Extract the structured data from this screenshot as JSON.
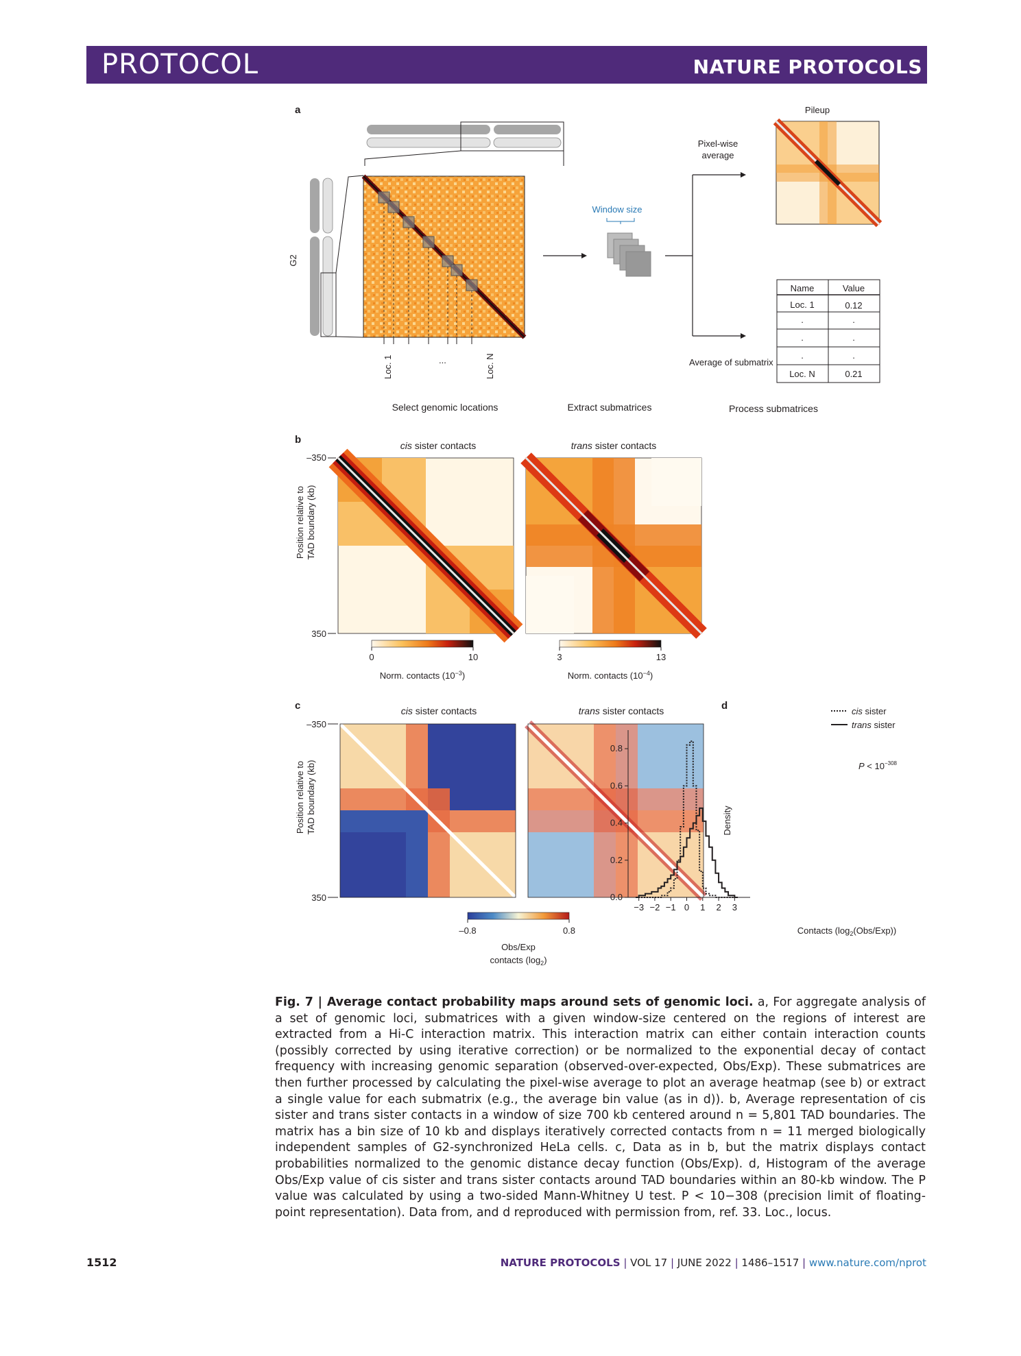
{
  "header": {
    "section": "PROTOCOL",
    "journal": "NATURE PROTOCOLS"
  },
  "panel_a": {
    "letter": "a",
    "g2_label": "G2",
    "loc1": "Loc. 1",
    "dots": "...",
    "locN": "Loc. N",
    "window_size": "Window size",
    "pixelwise_l1": "Pixel-wise",
    "pixelwise_l2": "average",
    "pileup": "Pileup",
    "average_sub": "Average of submatrix",
    "step1": "Select genomic locations",
    "step2": "Extract submatrices",
    "step3": "Process submatrices",
    "table": {
      "headers": [
        "Name",
        "Value"
      ],
      "rows": [
        [
          "Loc. 1",
          "0.12"
        ],
        [
          ".",
          "."
        ],
        [
          ".",
          "."
        ],
        [
          ".",
          "."
        ],
        [
          "Loc. N",
          "0.21"
        ]
      ]
    }
  },
  "panel_b": {
    "letter": "b",
    "cis_title_i": "cis",
    "trans_title_i": "trans",
    "title_rest": " sister contacts",
    "ylabel_l1": "Position relative to",
    "ylabel_l2": "TAD boundary (kb)",
    "y_top": "–350",
    "y_bottom": "350",
    "cbar1_min": "0",
    "cbar1_max": "10",
    "cbar1_label": "Norm. contacts (10",
    "cbar1_exp": "−3",
    "cbar1_close": ")",
    "cbar2_min": "3",
    "cbar2_max": "13",
    "cbar2_label": "Norm. contacts (10",
    "cbar2_exp": "−4",
    "cbar2_close": ")"
  },
  "panel_c": {
    "letter": "c",
    "y_top": "–350",
    "y_bottom": "350",
    "cbar_min": "–0.8",
    "cbar_max": "0.8",
    "cbar_label_l1": "Obs/Exp",
    "cbar_label_l2": "contacts (log",
    "cbar_label_sub": "2",
    "cbar_label_close": ")"
  },
  "chart_data": {
    "type": "line",
    "panel": "d",
    "xlabel": "Contacts (log2(Obs/Exp))",
    "ylabel": "Density",
    "xlim": [
      -3.2,
      3.2
    ],
    "ylim": [
      0,
      0.9
    ],
    "xticks": [
      -3,
      -2,
      -1,
      0,
      1,
      2,
      3
    ],
    "yticks": [
      0.0,
      0.2,
      0.4,
      0.6,
      0.8
    ],
    "annotation": "P < 10^−308",
    "bin_width": 0.2,
    "bin_edges_start": -3.2,
    "series": [
      {
        "name": "cis sister",
        "style": "dotted",
        "values": [
          0,
          0,
          0,
          0,
          0,
          0,
          0,
          0,
          0.01,
          0.01,
          0.03,
          0.05,
          0.1,
          0.2,
          0.38,
          0.6,
          0.82,
          0.84,
          0.6,
          0.36,
          0.14,
          0.05,
          0.02,
          0.01,
          0.01,
          0,
          0,
          0,
          0,
          0,
          0,
          0
        ]
      },
      {
        "name": "trans sister",
        "style": "solid",
        "values": [
          0,
          0.01,
          0.01,
          0.02,
          0.02,
          0.03,
          0.03,
          0.05,
          0.06,
          0.08,
          0.1,
          0.12,
          0.15,
          0.19,
          0.22,
          0.27,
          0.32,
          0.37,
          0.4,
          0.44,
          0.48,
          0.41,
          0.33,
          0.27,
          0.2,
          0.13,
          0.08,
          0.05,
          0.03,
          0.01,
          0.01,
          0
        ]
      }
    ]
  },
  "panel_d": {
    "letter": "d",
    "legend_cis_i": "cis",
    "legend_trans_i": "trans",
    "legend_rest": " sister",
    "ylabel": "Density",
    "xlabel_pre": "Contacts (log",
    "xlabel_sub": "2",
    "xlabel_post": "(Obs/Exp))",
    "p_pre": "P",
    "p_mid": " < 10",
    "p_exp": "−308",
    "xticks": [
      "−3",
      "−2",
      "−1",
      "0",
      "1",
      "2",
      "3"
    ],
    "yticks": [
      "0.0",
      "0.2",
      "0.4",
      "0.6",
      "0.8"
    ]
  },
  "caption": {
    "fig_label": "Fig. 7 | Average contact probability maps around sets of genomic loci.",
    "text": " a, For aggregate analysis of a set of genomic loci, submatrices with a given window-size centered on the regions of interest are extracted from a Hi-C interaction matrix. This interaction matrix can either contain interaction counts (possibly corrected by using iterative correction) or be normalized to the exponential decay of contact frequency with increasing genomic separation (observed-over-expected, Obs/Exp). These submatrices are then further processed by calculating the pixel-wise average to plot an average heatmap (see b) or extract a single value for each submatrix (e.g., the average bin value (as in d)). b, Average representation of cis sister and trans sister contacts in a window of size 700 kb centered around n = 5,801 TAD boundaries. The matrix has a bin size of 10 kb and displays iteratively corrected contacts from n = 11 merged biologically independent samples of G2-synchronized HeLa cells. c, Data as in b, but the matrix displays contact probabilities normalized to the genomic distance decay function (Obs/Exp). d, Histogram of the average Obs/Exp value of cis sister and trans sister contacts around TAD boundaries within an 80-kb window. The P value was calculated by using a two-sided Mann-Whitney U test. P < 10−308 (precision limit of floating-point representation). Data from, and d reproduced with permission from, ref. 33. Loc., locus."
  },
  "footer": {
    "page": "1512",
    "journal": "NATURE PROTOCOLS",
    "vol": "VOL 17",
    "date": "JUNE 2022",
    "pages": "1486–1517",
    "url": "www.nature.com/nprot"
  }
}
